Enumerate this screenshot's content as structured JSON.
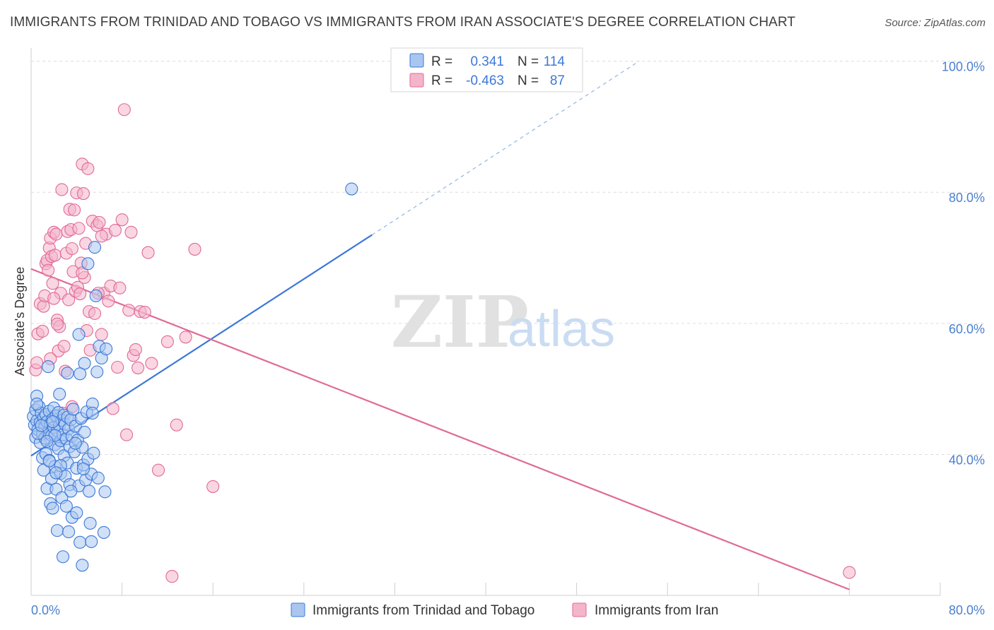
{
  "header": {
    "title": "IMMIGRANTS FROM TRINIDAD AND TOBAGO VS IMMIGRANTS FROM IRAN ASSOCIATE'S DEGREE CORRELATION CHART",
    "source": "Source: ZipAtlas.com"
  },
  "watermark": {
    "zip": "ZIP",
    "atlas": "atlas"
  },
  "colors": {
    "blue": "#3c78d8",
    "blue_fill": "#a9c6f0",
    "pink": "#e06a96",
    "pink_fill": "#f4b5cb",
    "grid": "#dcdcdc",
    "axis_text": "#4a80d0"
  },
  "stats_legend": {
    "rows": [
      {
        "r_label": "R =",
        "r_value": "0.341",
        "n_label": "N =",
        "n_value": "114",
        "color": "blue"
      },
      {
        "r_label": "R =",
        "r_value": "-0.463",
        "n_label": "N =",
        "n_value": "87",
        "color": "pink"
      }
    ]
  },
  "bottom_legend": [
    {
      "label": "Immigrants from Trinidad and Tobago",
      "color": "blue"
    },
    {
      "label": "Immigrants from Iran",
      "color": "pink"
    }
  ],
  "chart_data": {
    "type": "scatter",
    "title": "IMMIGRANTS FROM TRINIDAD AND TOBAGO VS IMMIGRANTS FROM IRAN ASSOCIATE'S DEGREE CORRELATION CHART",
    "xlabel": "",
    "ylabel": "Associate's Degree",
    "xlim": [
      0,
      80
    ],
    "ylim": [
      18.5,
      102
    ],
    "x_tick_labels": [
      {
        "value": 0,
        "label": "0.0%"
      },
      {
        "value": 80,
        "label": "80.0%"
      }
    ],
    "y_tick_labels": [
      {
        "value": 100,
        "label": "100.0%"
      },
      {
        "value": 80,
        "label": "80.0%"
      },
      {
        "value": 60,
        "label": "60.0%"
      },
      {
        "value": 40,
        "label": "40.0%"
      }
    ],
    "x_ticks": [
      0,
      8,
      16,
      24,
      32,
      40,
      48,
      56,
      64,
      72,
      80
    ],
    "grid": true,
    "series": [
      {
        "name": "Immigrants from Trinidad and Tobago",
        "color": "blue",
        "R": 0.341,
        "N": 114,
        "trend": {
          "x0": 0,
          "y0": 39.8,
          "x1": 30.0,
          "y1": 73.5,
          "dash_x1": 53.5,
          "dash_y1": 100
        },
        "points": [
          [
            0.2,
            45.8
          ],
          [
            0.3,
            44.5
          ],
          [
            0.4,
            46.8
          ],
          [
            0.4,
            42.6
          ],
          [
            0.5,
            48.9
          ],
          [
            0.5,
            45.1
          ],
          [
            0.6,
            43.8
          ],
          [
            0.7,
            47.3
          ],
          [
            0.8,
            44.9
          ],
          [
            0.8,
            41.8
          ],
          [
            0.9,
            46.3
          ],
          [
            1.0,
            43.1
          ],
          [
            1.0,
            39.5
          ],
          [
            1.1,
            45.6
          ],
          [
            1.1,
            37.6
          ],
          [
            1.2,
            44.2
          ],
          [
            1.2,
            42.5
          ],
          [
            1.3,
            46.1
          ],
          [
            1.3,
            40.1
          ],
          [
            1.4,
            45.0
          ],
          [
            1.4,
            34.8
          ],
          [
            1.5,
            43.3
          ],
          [
            1.5,
            53.4
          ],
          [
            1.6,
            46.6
          ],
          [
            1.6,
            39.1
          ],
          [
            1.7,
            44.7
          ],
          [
            1.7,
            32.5
          ],
          [
            1.8,
            42.9
          ],
          [
            1.8,
            36.3
          ],
          [
            1.9,
            45.4
          ],
          [
            1.9,
            31.8
          ],
          [
            2.0,
            44.1
          ],
          [
            2.0,
            47.1
          ],
          [
            2.1,
            41.5
          ],
          [
            2.1,
            38.2
          ],
          [
            2.2,
            45.9
          ],
          [
            2.2,
            34.7
          ],
          [
            2.3,
            43.6
          ],
          [
            2.3,
            28.4
          ],
          [
            2.4,
            46.4
          ],
          [
            2.4,
            40.9
          ],
          [
            2.5,
            44.4
          ],
          [
            2.5,
            49.2
          ],
          [
            2.6,
            42.1
          ],
          [
            2.6,
            37.1
          ],
          [
            2.7,
            45.2
          ],
          [
            2.7,
            33.4
          ],
          [
            2.8,
            43.0
          ],
          [
            2.8,
            24.4
          ],
          [
            2.9,
            46.0
          ],
          [
            2.9,
            39.8
          ],
          [
            3.0,
            44.6
          ],
          [
            3.0,
            36.7
          ],
          [
            3.1,
            42.4
          ],
          [
            3.1,
            32.1
          ],
          [
            3.2,
            45.7
          ],
          [
            3.2,
            38.7
          ],
          [
            3.3,
            43.9
          ],
          [
            3.3,
            28.2
          ],
          [
            3.4,
            41.2
          ],
          [
            3.4,
            35.4
          ],
          [
            3.5,
            45.3
          ],
          [
            3.6,
            42.8
          ],
          [
            3.6,
            30.4
          ],
          [
            3.7,
            46.9
          ],
          [
            3.8,
            40.4
          ],
          [
            3.9,
            44.3
          ],
          [
            4.0,
            37.9
          ],
          [
            4.0,
            31.1
          ],
          [
            4.1,
            42.2
          ],
          [
            4.2,
            58.3
          ],
          [
            4.2,
            35.2
          ],
          [
            4.3,
            26.6
          ],
          [
            4.4,
            45.5
          ],
          [
            4.5,
            41.1
          ],
          [
            4.5,
            23.1
          ],
          [
            4.6,
            38.4
          ],
          [
            4.7,
            43.4
          ],
          [
            4.7,
            53.9
          ],
          [
            4.8,
            36.1
          ],
          [
            4.9,
            46.5
          ],
          [
            5.0,
            69.1
          ],
          [
            5.0,
            39.3
          ],
          [
            5.1,
            34.4
          ],
          [
            5.2,
            29.5
          ],
          [
            5.3,
            37.0
          ],
          [
            5.3,
            26.7
          ],
          [
            5.4,
            47.7
          ],
          [
            5.5,
            40.2
          ],
          [
            5.6,
            71.6
          ],
          [
            5.7,
            64.2
          ],
          [
            5.8,
            52.6
          ],
          [
            5.9,
            36.4
          ],
          [
            6.0,
            56.5
          ],
          [
            6.2,
            54.7
          ],
          [
            6.4,
            28.1
          ],
          [
            6.5,
            34.3
          ],
          [
            6.6,
            56.1
          ],
          [
            4.3,
            52.3
          ],
          [
            3.2,
            52.4
          ],
          [
            2.1,
            42.9
          ],
          [
            1.6,
            39.0
          ],
          [
            0.6,
            43.2
          ],
          [
            0.9,
            44.4
          ],
          [
            1.9,
            45.0
          ],
          [
            2.6,
            38.3
          ],
          [
            3.5,
            34.4
          ],
          [
            4.6,
            37.8
          ],
          [
            5.4,
            46.3
          ],
          [
            3.9,
            41.7
          ],
          [
            2.2,
            37.2
          ],
          [
            28.2,
            80.5
          ],
          [
            0.5,
            47.7
          ],
          [
            1.4,
            42.0
          ]
        ]
      },
      {
        "name": "Immigrants from Iran",
        "color": "pink",
        "R": -0.463,
        "N": 87,
        "trend": {
          "x0": 0,
          "y0": 68.3,
          "x1": 72.0,
          "y1": 19.4
        },
        "points": [
          [
            0.4,
            52.9
          ],
          [
            0.5,
            54.0
          ],
          [
            0.6,
            58.4
          ],
          [
            0.8,
            63.0
          ],
          [
            1.0,
            58.8
          ],
          [
            1.1,
            62.6
          ],
          [
            1.2,
            64.2
          ],
          [
            1.3,
            69.1
          ],
          [
            1.4,
            69.6
          ],
          [
            1.5,
            68.1
          ],
          [
            1.6,
            71.5
          ],
          [
            1.7,
            73.0
          ],
          [
            1.8,
            70.2
          ],
          [
            1.9,
            66.1
          ],
          [
            2.0,
            73.9
          ],
          [
            2.1,
            70.4
          ],
          [
            2.2,
            73.6
          ],
          [
            2.3,
            60.5
          ],
          [
            2.4,
            55.8
          ],
          [
            2.5,
            59.5
          ],
          [
            2.6,
            64.6
          ],
          [
            2.7,
            80.4
          ],
          [
            2.8,
            46.3
          ],
          [
            2.9,
            56.5
          ],
          [
            3.0,
            52.7
          ],
          [
            3.1,
            70.7
          ],
          [
            3.2,
            74.0
          ],
          [
            3.3,
            63.6
          ],
          [
            3.4,
            77.4
          ],
          [
            3.5,
            74.3
          ],
          [
            3.6,
            71.4
          ],
          [
            3.7,
            67.9
          ],
          [
            3.8,
            77.3
          ],
          [
            3.9,
            64.9
          ],
          [
            4.0,
            79.9
          ],
          [
            4.1,
            65.5
          ],
          [
            4.2,
            74.5
          ],
          [
            4.3,
            64.5
          ],
          [
            4.4,
            69.2
          ],
          [
            4.5,
            84.3
          ],
          [
            4.6,
            79.8
          ],
          [
            4.7,
            67.0
          ],
          [
            4.8,
            72.2
          ],
          [
            4.9,
            58.9
          ],
          [
            5.0,
            83.6
          ],
          [
            5.1,
            61.8
          ],
          [
            5.2,
            55.9
          ],
          [
            5.4,
            75.6
          ],
          [
            5.6,
            61.5
          ],
          [
            5.8,
            74.9
          ],
          [
            6.0,
            75.4
          ],
          [
            6.2,
            58.3
          ],
          [
            6.4,
            64.6
          ],
          [
            6.6,
            73.6
          ],
          [
            6.8,
            63.4
          ],
          [
            7.0,
            65.7
          ],
          [
            7.2,
            47.0
          ],
          [
            7.4,
            74.2
          ],
          [
            7.6,
            53.3
          ],
          [
            7.8,
            65.4
          ],
          [
            8.0,
            75.8
          ],
          [
            8.2,
            92.6
          ],
          [
            8.4,
            43.0
          ],
          [
            8.6,
            62.0
          ],
          [
            8.8,
            73.9
          ],
          [
            9.0,
            55.1
          ],
          [
            9.2,
            56.0
          ],
          [
            9.4,
            53.2
          ],
          [
            9.6,
            61.8
          ],
          [
            10.0,
            61.7
          ],
          [
            10.3,
            70.8
          ],
          [
            10.6,
            53.9
          ],
          [
            11.2,
            37.6
          ],
          [
            12.0,
            57.2
          ],
          [
            12.4,
            21.4
          ],
          [
            12.8,
            44.5
          ],
          [
            13.6,
            57.9
          ],
          [
            14.4,
            71.3
          ],
          [
            16.0,
            35.1
          ],
          [
            72.0,
            22.0
          ],
          [
            1.7,
            54.6
          ],
          [
            3.6,
            47.3
          ],
          [
            5.9,
            64.6
          ],
          [
            2.3,
            59.9
          ],
          [
            4.5,
            67.7
          ],
          [
            2.0,
            63.8
          ],
          [
            6.2,
            73.3
          ]
        ]
      }
    ]
  }
}
